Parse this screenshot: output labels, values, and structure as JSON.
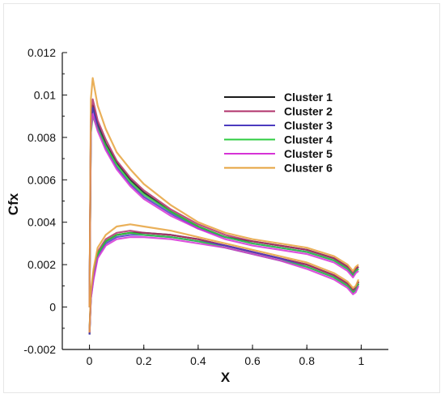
{
  "chart_data": {
    "type": "line",
    "title": "",
    "xlabel": "X",
    "ylabel": "Cfx",
    "xlim": [
      -0.1,
      1.1
    ],
    "ylim": [
      -0.002,
      0.012
    ],
    "x_ticks": [
      "0",
      "0.2",
      "0.4",
      "0.6",
      "0.8",
      "1"
    ],
    "y_ticks": [
      "-0.002",
      "0",
      "0.002",
      "0.004",
      "0.006",
      "0.008",
      "0.01",
      "0.012"
    ],
    "grid": false,
    "legend_position": "top-right",
    "series": [
      {
        "name": "Cluster 1",
        "color": "#1a1a1a",
        "upper": {
          "x": [
            0.0,
            0.005,
            0.012,
            0.03,
            0.06,
            0.1,
            0.15,
            0.2,
            0.3,
            0.4,
            0.5,
            0.6,
            0.7,
            0.8,
            0.9,
            0.95,
            0.97,
            0.98,
            0.99
          ],
          "y": [
            0.0,
            0.0085,
            0.0095,
            0.0086,
            0.0077,
            0.0068,
            0.006,
            0.0054,
            0.0045,
            0.0038,
            0.0033,
            0.0031,
            0.0029,
            0.0027,
            0.0023,
            0.0019,
            0.0015,
            0.0018,
            0.0019
          ]
        },
        "lower": {
          "x": [
            0.0,
            0.005,
            0.015,
            0.03,
            0.06,
            0.1,
            0.15,
            0.2,
            0.3,
            0.4,
            0.5,
            0.6,
            0.7,
            0.8,
            0.9,
            0.95,
            0.97,
            0.98,
            0.99
          ],
          "y": [
            -0.0013,
            0.0005,
            0.0015,
            0.0025,
            0.0031,
            0.0034,
            0.0035,
            0.0035,
            0.0034,
            0.0032,
            0.0029,
            0.0026,
            0.0023,
            0.002,
            0.0015,
            0.0011,
            0.0008,
            0.0009,
            0.0012
          ]
        }
      },
      {
        "name": "Cluster 2",
        "color": "#b0306a",
        "upper": {
          "x": [
            0.0,
            0.005,
            0.012,
            0.03,
            0.06,
            0.1,
            0.15,
            0.2,
            0.3,
            0.4,
            0.5,
            0.6,
            0.7,
            0.8,
            0.9,
            0.95,
            0.97,
            0.98,
            0.99
          ],
          "y": [
            0.0,
            0.0088,
            0.0098,
            0.0088,
            0.0079,
            0.0069,
            0.0061,
            0.0055,
            0.0046,
            0.0039,
            0.0034,
            0.0031,
            0.0029,
            0.0027,
            0.0023,
            0.0019,
            0.0016,
            0.0018,
            0.0019
          ]
        },
        "lower": {
          "x": [
            0.0,
            0.005,
            0.015,
            0.03,
            0.06,
            0.1,
            0.15,
            0.2,
            0.3,
            0.4,
            0.5,
            0.6,
            0.7,
            0.8,
            0.9,
            0.95,
            0.97,
            0.98,
            0.99
          ],
          "y": [
            -0.0012,
            0.0006,
            0.0016,
            0.0026,
            0.0032,
            0.0035,
            0.0036,
            0.0035,
            0.0034,
            0.0032,
            0.0029,
            0.0026,
            0.0023,
            0.002,
            0.0015,
            0.0011,
            0.0008,
            0.0009,
            0.0012
          ]
        }
      },
      {
        "name": "Cluster 3",
        "color": "#4b3bbf",
        "upper": {
          "x": [
            0.0,
            0.005,
            0.012,
            0.03,
            0.06,
            0.1,
            0.15,
            0.2,
            0.3,
            0.4,
            0.5,
            0.6,
            0.7,
            0.8,
            0.9,
            0.95,
            0.97,
            0.98,
            0.99
          ],
          "y": [
            0.0,
            0.0086,
            0.0094,
            0.0085,
            0.0075,
            0.0066,
            0.0058,
            0.0052,
            0.0044,
            0.0037,
            0.0033,
            0.003,
            0.0028,
            0.0026,
            0.0022,
            0.0018,
            0.0015,
            0.0017,
            0.0018
          ]
        },
        "lower": {
          "x": [
            0.0,
            0.005,
            0.015,
            0.03,
            0.06,
            0.1,
            0.15,
            0.2,
            0.3,
            0.4,
            0.5,
            0.6,
            0.7,
            0.8,
            0.9,
            0.95,
            0.97,
            0.98,
            0.99
          ],
          "y": [
            -0.0013,
            0.0004,
            0.0014,
            0.0024,
            0.003,
            0.0033,
            0.0034,
            0.0034,
            0.0033,
            0.0031,
            0.0029,
            0.0026,
            0.0023,
            0.0019,
            0.0014,
            0.001,
            0.0007,
            0.0008,
            0.0011
          ]
        }
      },
      {
        "name": "Cluster 4",
        "color": "#2ecc40",
        "upper": {
          "x": [
            0.0,
            0.005,
            0.012,
            0.03,
            0.06,
            0.1,
            0.15,
            0.2,
            0.3,
            0.4,
            0.5,
            0.6,
            0.7,
            0.8,
            0.9,
            0.95,
            0.97,
            0.98,
            0.99
          ],
          "y": [
            0.0,
            0.0082,
            0.009,
            0.0084,
            0.0076,
            0.0067,
            0.0059,
            0.0053,
            0.0045,
            0.0038,
            0.0033,
            0.003,
            0.0028,
            0.0026,
            0.0022,
            0.0018,
            0.0015,
            0.0017,
            0.0018
          ]
        },
        "lower": {
          "x": [
            0.0,
            0.005,
            0.015,
            0.03,
            0.06,
            0.1,
            0.15,
            0.2,
            0.3,
            0.4,
            0.5,
            0.6,
            0.7,
            0.8,
            0.9,
            0.95,
            0.97,
            0.98,
            0.99
          ],
          "y": [
            -0.0011,
            0.0005,
            0.0015,
            0.0025,
            0.0031,
            0.0034,
            0.0035,
            0.0034,
            0.0033,
            0.0031,
            0.0028,
            0.0025,
            0.0022,
            0.0019,
            0.0014,
            0.001,
            0.0007,
            0.0008,
            0.0011
          ]
        }
      },
      {
        "name": "Cluster 5",
        "color": "#d633d6",
        "upper": {
          "x": [
            0.0,
            0.005,
            0.012,
            0.03,
            0.06,
            0.1,
            0.15,
            0.2,
            0.3,
            0.4,
            0.5,
            0.6,
            0.7,
            0.8,
            0.9,
            0.95,
            0.97,
            0.98,
            0.99
          ],
          "y": [
            0.0,
            0.0084,
            0.0091,
            0.0083,
            0.0074,
            0.0065,
            0.0057,
            0.0051,
            0.0043,
            0.0037,
            0.0032,
            0.0029,
            0.0027,
            0.0025,
            0.0021,
            0.0017,
            0.0014,
            0.0016,
            0.0017
          ]
        },
        "lower": {
          "x": [
            0.0,
            0.005,
            0.015,
            0.03,
            0.06,
            0.1,
            0.15,
            0.2,
            0.3,
            0.4,
            0.5,
            0.6,
            0.7,
            0.8,
            0.9,
            0.95,
            0.97,
            0.98,
            0.99
          ],
          "y": [
            -0.0012,
            0.0004,
            0.0013,
            0.0023,
            0.0029,
            0.0032,
            0.0033,
            0.0033,
            0.0032,
            0.003,
            0.0028,
            0.0025,
            0.0022,
            0.0018,
            0.0013,
            0.0009,
            0.0006,
            0.0007,
            0.001
          ]
        }
      },
      {
        "name": "Cluster 6",
        "color": "#e6a23c",
        "upper": {
          "x": [
            0.0,
            0.005,
            0.012,
            0.03,
            0.06,
            0.1,
            0.15,
            0.2,
            0.3,
            0.4,
            0.5,
            0.6,
            0.7,
            0.8,
            0.9,
            0.95,
            0.97,
            0.98,
            0.99
          ],
          "y": [
            0.0,
            0.0098,
            0.0108,
            0.0095,
            0.0084,
            0.0073,
            0.0065,
            0.0058,
            0.0048,
            0.004,
            0.0035,
            0.0032,
            0.003,
            0.0028,
            0.0024,
            0.002,
            0.0017,
            0.0019,
            0.002
          ]
        },
        "lower": {
          "x": [
            0.0,
            0.005,
            0.015,
            0.03,
            0.06,
            0.1,
            0.15,
            0.2,
            0.3,
            0.4,
            0.5,
            0.6,
            0.7,
            0.8,
            0.9,
            0.95,
            0.97,
            0.98,
            0.99
          ],
          "y": [
            -0.0012,
            0.0007,
            0.0018,
            0.0028,
            0.0034,
            0.0038,
            0.0039,
            0.0038,
            0.0036,
            0.0033,
            0.003,
            0.0027,
            0.0024,
            0.0021,
            0.0016,
            0.0012,
            0.0009,
            0.001,
            0.0013
          ]
        }
      }
    ]
  }
}
